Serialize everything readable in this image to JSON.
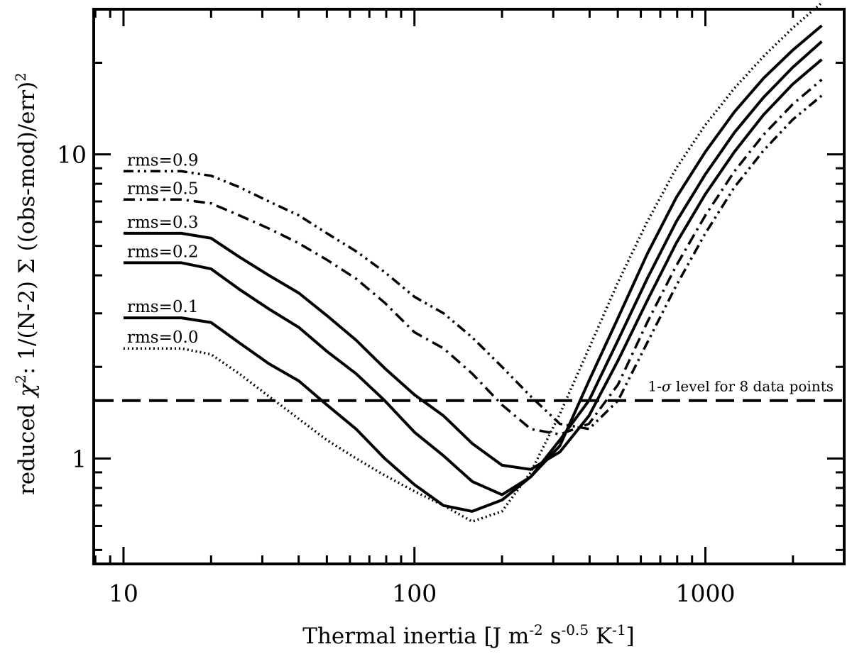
{
  "chart_data": {
    "type": "line",
    "title": "",
    "xlabel": "Thermal inertia [J m-2 s-0.5 K-1]",
    "xlabel_parts": {
      "base": "Thermal inertia [J m",
      "sup1": "-2",
      "mid1": " s",
      "sup2": "-0.5",
      "mid2": " K",
      "sup3": "-1",
      "end": "]"
    },
    "ylabel": "reduced χ2: 1/(N-2) Σ ((obs-mod)/err)2",
    "ylabel_parts": {
      "a": "reduced ",
      "chi": "χ",
      "sup1": "2",
      "b": ": 1/(N-2) Σ ((obs-mod)/err)",
      "sup2": "2"
    },
    "xscale": "log",
    "yscale": "log",
    "xlim": [
      7.9,
      3000
    ],
    "ylim": [
      0.45,
      30
    ],
    "x_ticks": [
      {
        "value": 10,
        "label": "10"
      },
      {
        "value": 100,
        "label": "100"
      },
      {
        "value": 1000,
        "label": "1000"
      }
    ],
    "y_ticks": [
      {
        "value": 1,
        "label": "1"
      },
      {
        "value": 10,
        "label": "10"
      }
    ],
    "x": [
      10,
      12.6,
      15.8,
      20,
      25,
      31.6,
      40,
      50,
      63,
      79,
      100,
      126,
      158,
      200,
      251,
      316,
      398,
      501,
      631,
      794,
      1000,
      1259,
      1585,
      1995,
      2512
    ],
    "series": [
      {
        "name": "rms=0.0",
        "label": "rms=0.0",
        "style": "dotted",
        "values": [
          2.3,
          2.3,
          2.3,
          2.2,
          1.9,
          1.6,
          1.35,
          1.15,
          1.0,
          0.88,
          0.78,
          0.7,
          0.62,
          0.67,
          0.9,
          1.4,
          2.3,
          3.8,
          6.0,
          9.0,
          12.5,
          16.5,
          21.0,
          26.0,
          31.5
        ]
      },
      {
        "name": "rms=0.1",
        "label": "rms=0.1",
        "style": "solid",
        "values": [
          2.9,
          2.9,
          2.9,
          2.8,
          2.4,
          2.05,
          1.8,
          1.5,
          1.25,
          1.0,
          0.82,
          0.7,
          0.67,
          0.73,
          0.87,
          1.1,
          1.8,
          2.9,
          4.7,
          7.2,
          10.2,
          13.8,
          17.8,
          22.0,
          26.5
        ]
      },
      {
        "name": "rms=0.2",
        "label": "rms=0.2",
        "style": "solid",
        "values": [
          4.4,
          4.4,
          4.4,
          4.2,
          3.6,
          3.1,
          2.7,
          2.25,
          1.9,
          1.55,
          1.22,
          1.02,
          0.84,
          0.76,
          0.87,
          1.15,
          1.55,
          2.45,
          3.9,
          6.0,
          8.6,
          11.8,
          15.4,
          19.3,
          23.5
        ]
      },
      {
        "name": "rms=0.3",
        "label": "rms=0.3",
        "style": "solid",
        "values": [
          5.5,
          5.5,
          5.5,
          5.3,
          4.6,
          4.0,
          3.5,
          2.95,
          2.45,
          1.98,
          1.62,
          1.38,
          1.12,
          0.95,
          0.92,
          1.05,
          1.38,
          2.1,
          3.3,
          5.1,
          7.4,
          10.2,
          13.5,
          17.0,
          20.5
        ]
      },
      {
        "name": "rms=0.5",
        "label": "rms=0.5",
        "style": "dashdot",
        "values": [
          7.1,
          7.1,
          7.1,
          6.9,
          6.3,
          5.7,
          5.1,
          4.5,
          3.9,
          3.25,
          2.6,
          2.3,
          1.9,
          1.5,
          1.25,
          1.2,
          1.3,
          1.75,
          2.8,
          4.3,
          6.3,
          8.8,
          11.6,
          14.6,
          17.6
        ]
      },
      {
        "name": "rms=0.9",
        "label": "rms=0.9",
        "style": "dashdotdot",
        "values": [
          8.8,
          8.8,
          8.8,
          8.5,
          7.8,
          7.0,
          6.3,
          5.5,
          4.8,
          4.1,
          3.4,
          3.0,
          2.5,
          2.0,
          1.6,
          1.3,
          1.25,
          1.55,
          2.4,
          3.7,
          5.5,
          7.8,
          10.3,
          13.0,
          15.6
        ]
      }
    ],
    "reference_line": {
      "y": 1.55,
      "style": "dashed",
      "label": "1-σ level for 8 data points",
      "label_parts": {
        "pre": "1-",
        "sigma": "σ",
        "post": " level for 8 data points"
      }
    },
    "grid": false,
    "legend": "inline labels at left"
  }
}
